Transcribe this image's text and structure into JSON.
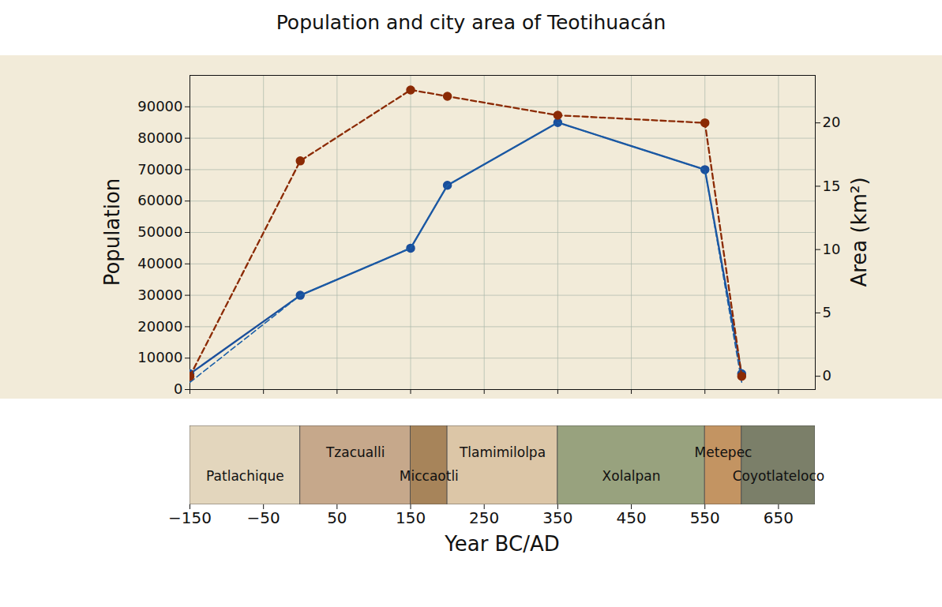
{
  "chart_data": {
    "type": "line",
    "title": "Population and city area of Teotihuacán",
    "xlabel": "Year BC/AD",
    "ylabel": "Population",
    "y2label": "Area (km²)",
    "x": [
      -150,
      0,
      150,
      200,
      350,
      550,
      600
    ],
    "xlim": [
      -150,
      700
    ],
    "xticks": [
      {
        "value": -150,
        "label": "−150"
      },
      {
        "value": -50,
        "label": "−50"
      },
      50,
      150,
      250,
      350,
      450,
      550,
      650
    ],
    "ylim": [
      0,
      100000
    ],
    "yticks": [
      0,
      10000,
      20000,
      30000,
      40000,
      50000,
      60000,
      70000,
      80000,
      90000
    ],
    "y2lim": [
      -1.05,
      23.75
    ],
    "y2ticks": [
      0,
      5,
      10,
      15,
      20
    ],
    "grid": true,
    "series": [
      {
        "color": "#1a4f9c",
        "line_style": "solid",
        "marker": "circle",
        "values": [
          5000,
          30000,
          45000,
          65000,
          85000,
          70000,
          5000
        ]
      },
      {
        "color": "#1a5fa8",
        "line_style": "dashed",
        "marker": "none",
        "values": [
          2300,
          30000,
          45000,
          65000,
          85000,
          70000,
          2300
        ]
      },
      {
        "color": "#8b2a04",
        "line_style": "dashed",
        "marker": "circle",
        "axis": "y2",
        "values": [
          0,
          17,
          22.6,
          22.1,
          20.6,
          20,
          0
        ]
      }
    ],
    "periods": [
      {
        "name": "Patlachique",
        "start": -150,
        "end": 0,
        "color": "#e3d6bd"
      },
      {
        "name": "Tzacualli",
        "start": 0,
        "end": 150,
        "color": "#c6a88b"
      },
      {
        "name": "Miccaotli",
        "start": 150,
        "end": 200,
        "color": "#a7845a"
      },
      {
        "name": "Tlamimilolpa",
        "start": 200,
        "end": 350,
        "color": "#dcc6a7"
      },
      {
        "name": "Xolalpan",
        "start": 350,
        "end": 550,
        "color": "#98a27e"
      },
      {
        "name": "Metepec",
        "start": 550,
        "end": 600,
        "color": "#c39462"
      },
      {
        "name": "Coyotlateloco",
        "start": 600,
        "end": 700,
        "color": "#7b7f69"
      }
    ]
  }
}
